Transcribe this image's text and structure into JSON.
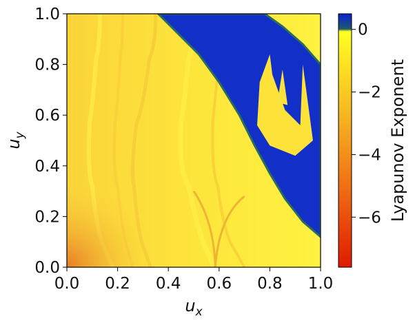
{
  "chart_data": {
    "type": "heatmap",
    "title": "",
    "xlabel": "u",
    "xlabel_sub": "x",
    "ylabel": "u",
    "ylabel_sub": "y",
    "xlim": [
      0.0,
      1.0
    ],
    "ylim": [
      0.0,
      1.0
    ],
    "xticks": [
      "0.0",
      "0.2",
      "0.4",
      "0.6",
      "0.8",
      "1.0"
    ],
    "yticks": [
      "0.0",
      "0.2",
      "0.4",
      "0.6",
      "0.8",
      "1.0"
    ],
    "grid": false,
    "colorbar": {
      "label": "Lyapunov Exponent",
      "range": [
        -7.6,
        0.5
      ],
      "ticks": [
        "0",
        "−2",
        "−4",
        "−6"
      ],
      "tick_values": [
        0,
        -2,
        -4,
        -6
      ],
      "colors": {
        "min": "#e01a00",
        "mid": "#f59a1c",
        "near_zero": "#ffff22",
        "positive": "#1f3fbe",
        "top": "#0a1fd4"
      }
    },
    "regions": {
      "stable_exponent": -1.0,
      "chaotic_exponent": 0.3,
      "chaotic_boundary": [
        {
          "x": 0.36,
          "y": 1.0
        },
        {
          "x": 0.42,
          "y": 0.94
        },
        {
          "x": 0.52,
          "y": 0.84
        },
        {
          "x": 0.6,
          "y": 0.73
        },
        {
          "x": 0.68,
          "y": 0.6
        },
        {
          "x": 0.74,
          "y": 0.48
        },
        {
          "x": 0.8,
          "y": 0.37
        },
        {
          "x": 0.86,
          "y": 0.27
        },
        {
          "x": 0.93,
          "y": 0.18
        },
        {
          "x": 1.0,
          "y": 0.12
        }
      ],
      "chaotic_right_edge": [
        {
          "x": 1.0,
          "y": 0.8
        },
        {
          "x": 0.93,
          "y": 0.88
        },
        {
          "x": 0.85,
          "y": 0.95
        },
        {
          "x": 0.78,
          "y": 1.0
        }
      ]
    },
    "colors": {
      "chaotic": "#1230c8",
      "chaotic_edge": "#2a5a6a",
      "stable": "#fde23a",
      "stable_light": "#fff34a",
      "stable_dark": "#f2b530",
      "corner": "#e88a2a"
    }
  }
}
